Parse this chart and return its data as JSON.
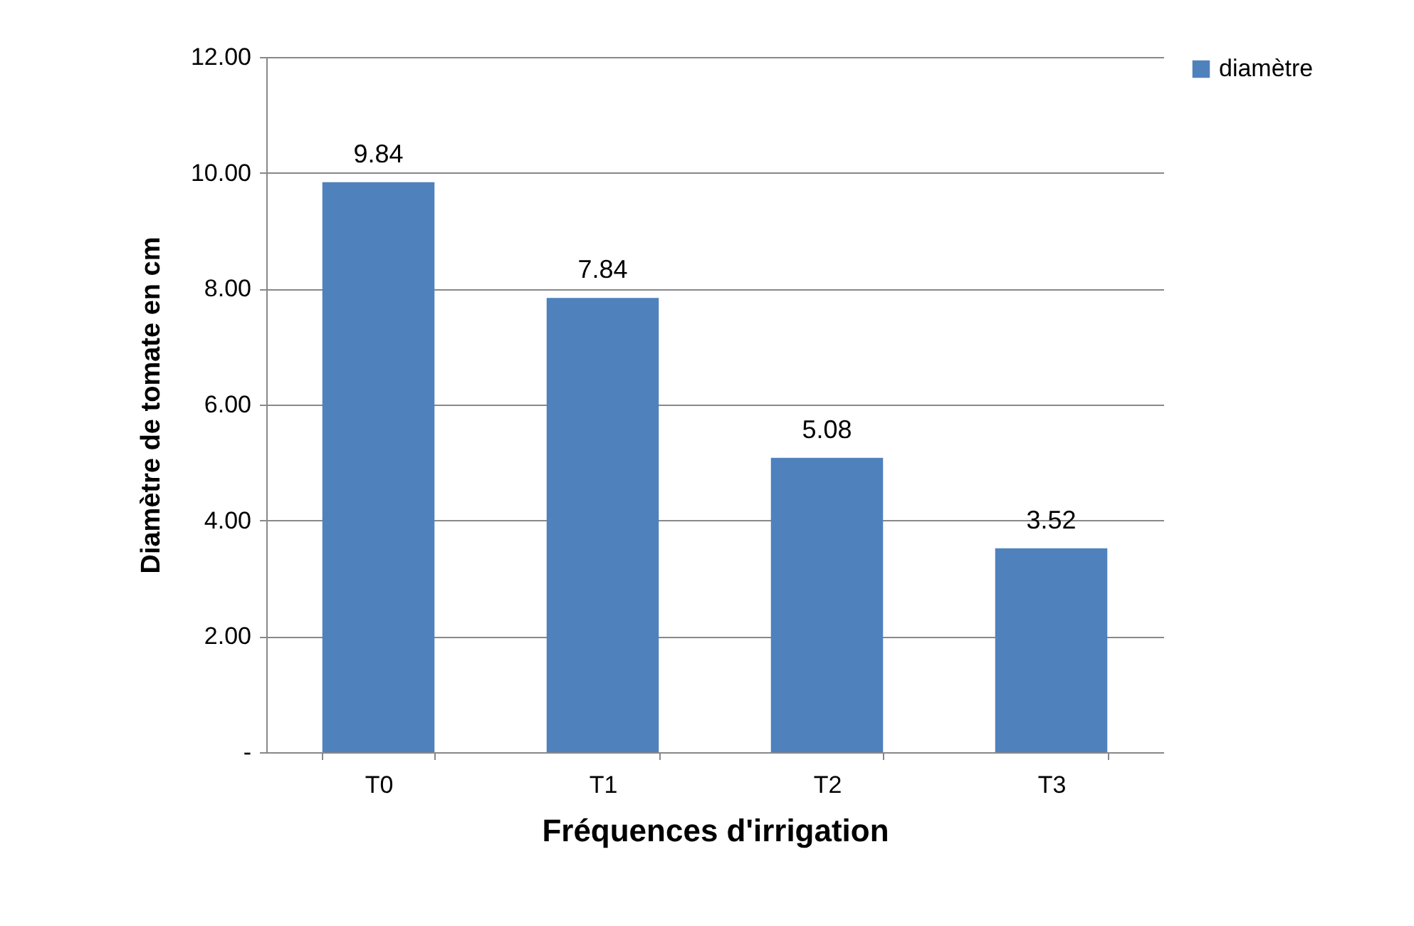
{
  "chart_data": {
    "type": "bar",
    "xlabel": "Fréquences d'irrigation",
    "ylabel": "Diamètre de tomate en cm",
    "categories": [
      "T0",
      "T1",
      "T2",
      "T3"
    ],
    "series": [
      {
        "name": "diamètre",
        "color": "#4f81bd",
        "values": [
          9.84,
          7.84,
          5.08,
          3.52
        ]
      }
    ],
    "ylim": [
      0,
      12
    ],
    "yticks": [
      {
        "value": 0,
        "label": "-"
      },
      {
        "value": 2,
        "label": "2.00"
      },
      {
        "value": 4,
        "label": "4.00"
      },
      {
        "value": 6,
        "label": "6.00"
      },
      {
        "value": 8,
        "label": "8.00"
      },
      {
        "value": 10,
        "label": "10.00"
      },
      {
        "value": 12,
        "label": "12.00"
      }
    ],
    "grid": "y",
    "legend": "right",
    "data_labels": true
  }
}
